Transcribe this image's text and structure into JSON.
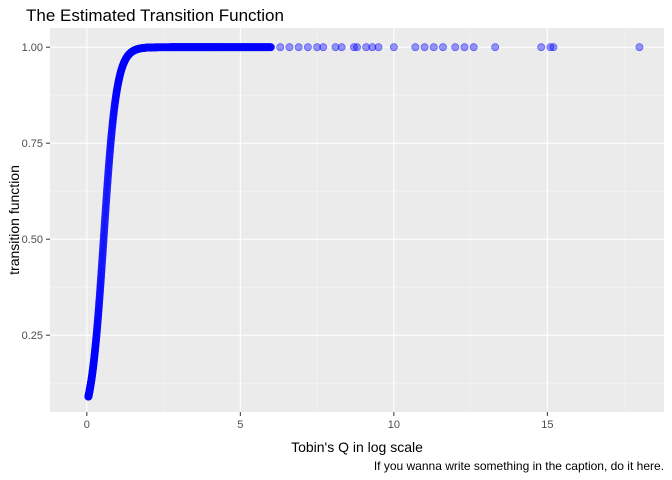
{
  "chart_data": {
    "type": "scatter",
    "title": "The Estimated Transition Function",
    "xlabel": "Tobin's Q in log scale",
    "ylabel": "transition function",
    "caption": "If you wanna write something in the caption, do it here.",
    "xlim": [
      -1.2,
      18.8
    ],
    "ylim": [
      0.05,
      1.05
    ],
    "x_ticks": [
      0,
      5,
      10,
      15
    ],
    "x_tick_labels": [
      "0",
      "5",
      "10",
      "15"
    ],
    "y_ticks": [
      0.25,
      0.5,
      0.75,
      1.0
    ],
    "y_tick_labels": [
      "0.25",
      "0.50",
      "0.75",
      "1.00"
    ],
    "grid": true,
    "legend": "none",
    "point_color": "#0000ff",
    "point_alpha": 0.4,
    "panel_background": "#ebebeb",
    "curve": {
      "description": "logistic transition function, dense from x=0 to x=6",
      "x_min": 0.05,
      "x_max": 6.0,
      "y_at_start": 0.09,
      "midpoint": 0.55,
      "slope": 4.8
    },
    "outlier_points_x": [
      6.3,
      6.6,
      6.9,
      7.2,
      7.5,
      7.7,
      8.1,
      8.3,
      8.7,
      8.8,
      9.1,
      9.3,
      9.5,
      10.0,
      10.7,
      11.0,
      11.3,
      11.6,
      12.0,
      12.3,
      12.6,
      13.3,
      14.8,
      15.1,
      15.2,
      18.0
    ],
    "outlier_points_y": 1.0
  }
}
